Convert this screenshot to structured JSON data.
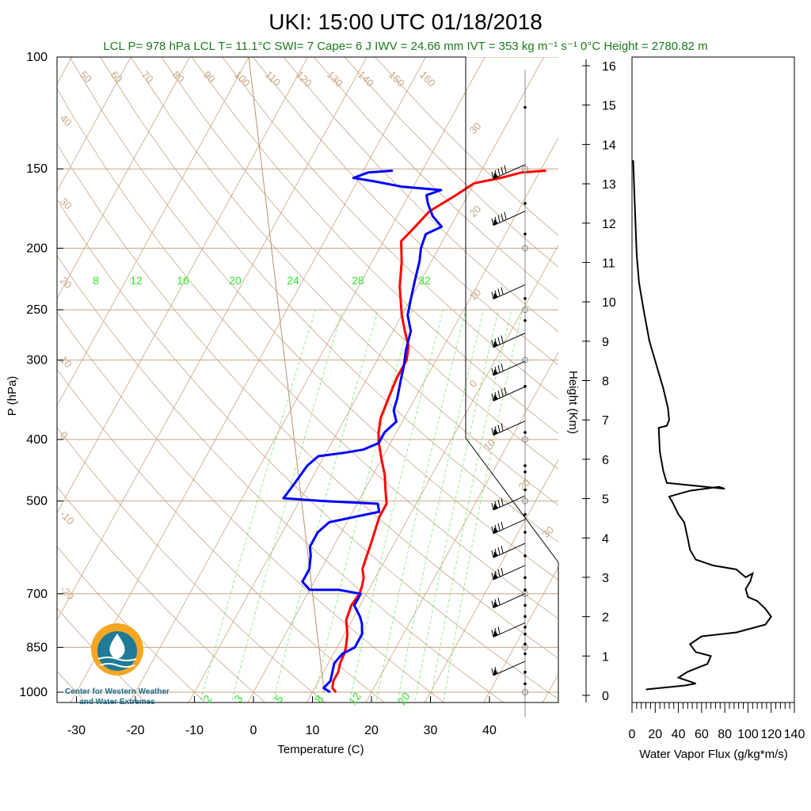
{
  "title": "UKI: 15:00 UTC 01/18/2018",
  "subtitle": "LCL P= 978 hPa  LCL T= 11.1°C  SWI= 7  Cape= 6 J  IWV = 24.66 mm  IVT = 353 kg m⁻¹ s⁻¹  0°C Height = 2780.82 m",
  "logo": {
    "line1": "Center for Western Weather",
    "line2": "and Water Extremes"
  },
  "colors": {
    "temperature": "#ff0000",
    "dewpoint": "#0000ff",
    "isotherm": "#c8a582",
    "mixing_ratio": "#2ee82e",
    "subtitle": "#1a7a1a"
  },
  "chart_data": [
    {
      "type": "line",
      "title": "UKI: 15:00 UTC 01/18/2018",
      "xlabel": "Temperature (C)",
      "ylabel": "P (hPa)",
      "xlim": [
        -35,
        50
      ],
      "ylim": [
        1050,
        100
      ],
      "y_scale": "log",
      "x_ticks": [
        "-30",
        "-20",
        "-10",
        "0",
        "10",
        "20",
        "30",
        "40"
      ],
      "y_ticks": [
        "100",
        "150",
        "200",
        "250",
        "300",
        "400",
        "500",
        "700",
        "850",
        "1000"
      ],
      "isotherm_labels": [
        "50",
        "60",
        "70",
        "80",
        "90",
        "100",
        "110",
        "120",
        "130",
        "140",
        "150",
        "160",
        "40",
        "30",
        "20",
        "10",
        "0",
        "-10",
        "-20"
      ],
      "theta_labels": [
        "30",
        "20",
        "10",
        "0",
        "10",
        "20",
        "30"
      ],
      "mixing_ratio_labels_top": [
        "8",
        "12",
        "16",
        "20",
        "24",
        "28",
        "32"
      ],
      "mixing_ratio_labels_bottom": [
        "2",
        "3",
        "5",
        "8",
        "12",
        "20"
      ],
      "series": [
        {
          "points": [
            [
              14,
              1000
            ],
            [
              13,
              985
            ],
            [
              12.5,
              960
            ],
            [
              12.5,
              930
            ],
            [
              12,
              900
            ],
            [
              11.8,
              870
            ],
            [
              11.5,
              850
            ],
            [
              10.5,
              810
            ],
            [
              9,
              770
            ],
            [
              8.5,
              730
            ],
            [
              8.8,
              700
            ],
            [
              8.5,
              680
            ],
            [
              8,
              660
            ],
            [
              7,
              640
            ],
            [
              6.5,
              610
            ],
            [
              6,
              580
            ],
            [
              5.5,
              555
            ],
            [
              5,
              530
            ],
            [
              5,
              505
            ],
            [
              3.5,
              480
            ],
            [
              2,
              455
            ],
            [
              0,
              430
            ],
            [
              -2,
              405
            ],
            [
              -3,
              390
            ],
            [
              -4,
              370
            ],
            [
              -4.5,
              345
            ],
            [
              -5,
              320
            ],
            [
              -5,
              300
            ],
            [
              -6,
              285
            ],
            [
              -8,
              270
            ],
            [
              -10,
              255
            ],
            [
              -13,
              230
            ],
            [
              -15,
              210
            ],
            [
              -17,
              195
            ],
            [
              -16,
              185
            ],
            [
              -15,
              175
            ],
            [
              -12,
              165
            ],
            [
              -10,
              158
            ],
            [
              -6,
              155
            ],
            [
              -3,
              152
            ],
            [
              1,
              151
            ]
          ]
        },
        {
          "points": [
            [
              13,
              1000
            ],
            [
              11.5,
              985
            ],
            [
              12,
              960
            ],
            [
              11.5,
              930
            ],
            [
              11,
              900
            ],
            [
              11.5,
              870
            ],
            [
              13,
              850
            ],
            [
              13,
              810
            ],
            [
              12,
              780
            ],
            [
              11,
              760
            ],
            [
              9,
              730
            ],
            [
              9,
              700
            ],
            [
              5,
              690
            ],
            [
              0,
              690
            ],
            [
              -2,
              670
            ],
            [
              -2,
              640
            ],
            [
              -3,
              610
            ],
            [
              -4,
              590
            ],
            [
              -4,
              560
            ],
            [
              -3,
              540
            ],
            [
              4.5,
              520
            ],
            [
              3.5,
              505
            ],
            [
              -6,
              500
            ],
            [
              -13,
              495
            ],
            [
              -12.5,
              470
            ],
            [
              -12,
              440
            ],
            [
              -11,
              425
            ],
            [
              -7,
              420
            ],
            [
              -4,
              415
            ],
            [
              -2,
              405
            ],
            [
              -2,
              390
            ],
            [
              -1,
              375
            ],
            [
              -2.5,
              360
            ],
            [
              -3,
              345
            ],
            [
              -4,
              325
            ],
            [
              -5,
              305
            ],
            [
              -6,
              290
            ],
            [
              -7,
              270
            ],
            [
              -9,
              255
            ],
            [
              -10,
              240
            ],
            [
              -11,
              225
            ],
            [
              -12,
              210
            ],
            [
              -13,
              200
            ],
            [
              -13.5,
              190
            ],
            [
              -11.5,
              185
            ],
            [
              -14,
              178
            ],
            [
              -16,
              170
            ],
            [
              -17,
              165
            ],
            [
              -15,
              162
            ],
            [
              -22,
              160
            ],
            [
              -27,
              157
            ],
            [
              -31,
              155
            ],
            [
              -29,
              152
            ],
            [
              -25,
              151
            ]
          ]
        }
      ]
    },
    {
      "type": "line",
      "xlabel": "Water Vapor Flux (g/kg*m/s)",
      "ylabel": "Height (Km)",
      "xlim": [
        0,
        140
      ],
      "ylim": [
        0,
        16.5
      ],
      "x_ticks": [
        "0",
        "20",
        "40",
        "60",
        "80",
        "100",
        "120",
        "140"
      ],
      "y_ticks": [
        "0",
        "1",
        "2",
        "3",
        "4",
        "5",
        "6",
        "7",
        "8",
        "9",
        "10",
        "11",
        "12",
        "13",
        "14",
        "15",
        "16"
      ],
      "series": [
        {
          "points": [
            [
              12,
              0.15
            ],
            [
              45,
              0.25
            ],
            [
              55,
              0.3
            ],
            [
              40,
              0.45
            ],
            [
              48,
              0.6
            ],
            [
              65,
              0.8
            ],
            [
              68,
              1
            ],
            [
              55,
              1.1
            ],
            [
              50,
              1.3
            ],
            [
              60,
              1.5
            ],
            [
              90,
              1.6
            ],
            [
              115,
              1.8
            ],
            [
              120,
              2
            ],
            [
              115,
              2.2
            ],
            [
              108,
              2.4
            ],
            [
              100,
              2.5
            ],
            [
              98,
              2.7
            ],
            [
              102,
              2.9
            ],
            [
              104,
              3.1
            ],
            [
              98,
              3.0
            ],
            [
              90,
              3.2
            ],
            [
              70,
              3.3
            ],
            [
              55,
              3.45
            ],
            [
              50,
              3.7
            ],
            [
              48,
              4.0
            ],
            [
              45,
              4.4
            ],
            [
              40,
              4.6
            ],
            [
              35,
              4.9
            ],
            [
              32,
              5.05
            ],
            [
              50,
              5.2
            ],
            [
              75,
              5.3
            ],
            [
              80,
              5.25
            ],
            [
              30,
              5.4
            ],
            [
              27,
              5.7
            ],
            [
              24,
              6.2
            ],
            [
              23,
              6.8
            ],
            [
              30,
              6.85
            ],
            [
              32,
              7
            ],
            [
              31,
              7.3
            ],
            [
              27,
              7.8
            ],
            [
              22,
              8.3
            ],
            [
              15,
              9
            ],
            [
              10,
              9.8
            ],
            [
              6,
              10.5
            ],
            [
              4,
              11.2
            ],
            [
              3,
              12
            ],
            [
              2,
              12.8
            ],
            [
              1,
              13.6
            ]
          ]
        }
      ]
    }
  ]
}
